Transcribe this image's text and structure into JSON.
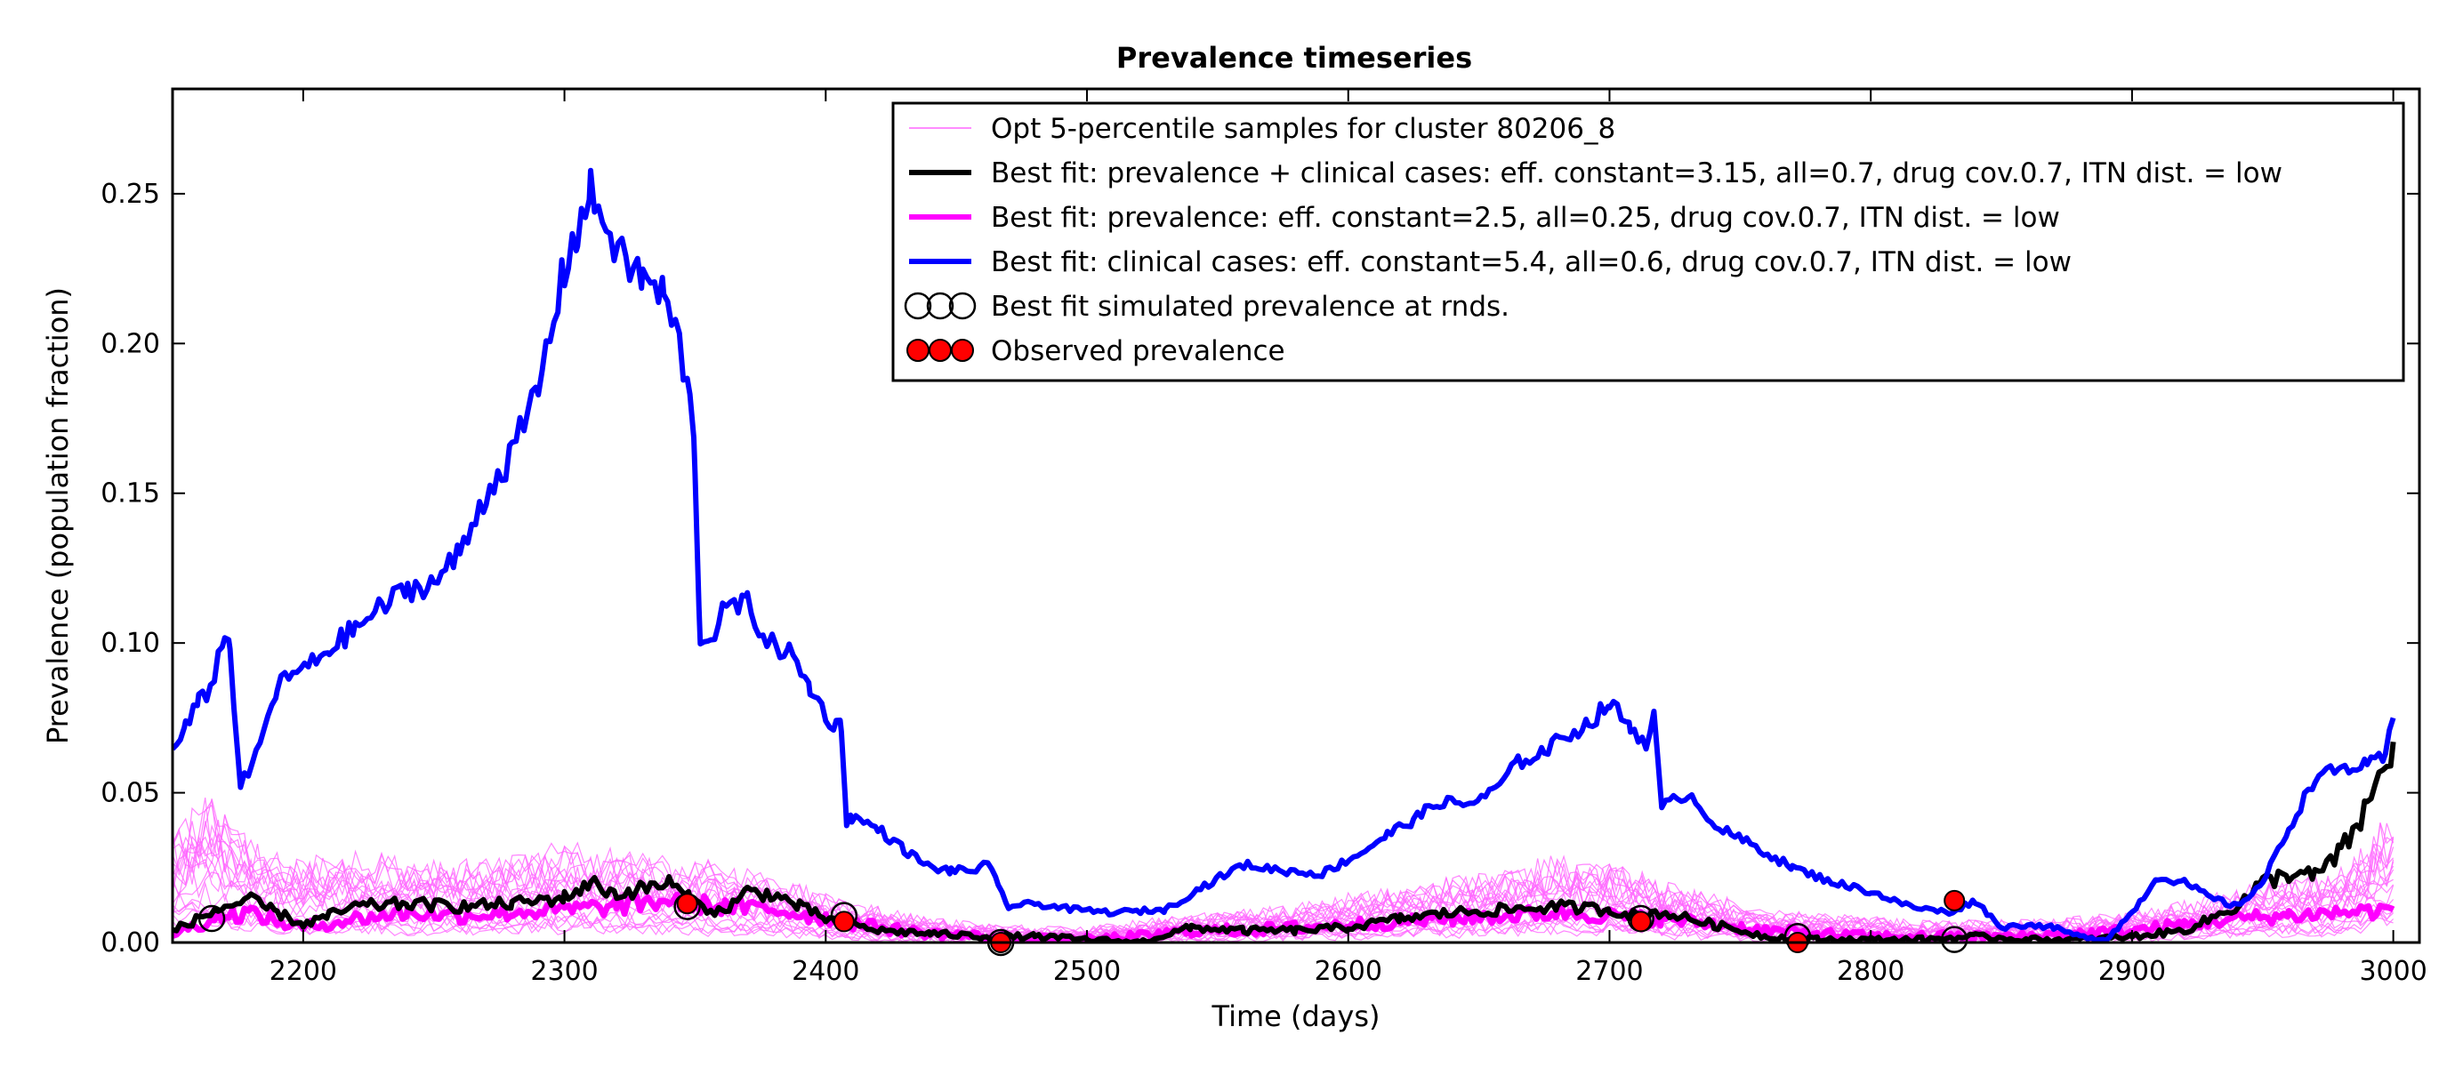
{
  "chart_data": {
    "type": "line",
    "title": "Prevalence timeseries",
    "xlabel": "Time (days)",
    "ylabel": "Prevalence (population fraction)",
    "xlim": [
      2150,
      3010
    ],
    "ylim": [
      0.0,
      0.285
    ],
    "x_ticks": [
      2200,
      2300,
      2400,
      2500,
      2600,
      2700,
      2800,
      2900,
      3000
    ],
    "y_ticks": [
      0.0,
      0.05,
      0.1,
      0.15,
      0.2,
      0.25
    ],
    "x_tick_labels": [
      "2200",
      "2300",
      "2400",
      "2500",
      "2600",
      "2700",
      "2800",
      "2900",
      "3000"
    ],
    "y_tick_labels": [
      "0.00",
      "0.05",
      "0.10",
      "0.15",
      "0.20",
      "0.25"
    ],
    "grid": false,
    "legend_position": "top-right",
    "colors": {
      "samples": "#ff66ff",
      "best_both": "#000000",
      "best_prevalence": "#ff00ff",
      "best_clinical": "#0000ff",
      "observed_fill": "#ff0000"
    },
    "legend": [
      {
        "key": "samples",
        "label": "Opt 5-percentile samples for cluster 80206_8"
      },
      {
        "key": "best_both",
        "label": "Best fit: prevalence + clinical cases: eff. constant=3.15, all=0.7, drug cov.0.7, ITN dist. = low"
      },
      {
        "key": "best_prevalence",
        "label": "Best fit: prevalence: eff. constant=2.5, all=0.25, drug cov.0.7, ITN dist. = low"
      },
      {
        "key": "best_clinical",
        "label": "Best fit: clinical cases: eff. constant=5.4, all=0.6, drug cov.0.7, ITN dist. = low"
      },
      {
        "key": "sim_rounds",
        "label": "Best fit simulated prevalence at rnds."
      },
      {
        "key": "observed",
        "label": "Observed prevalence"
      }
    ],
    "series": [
      {
        "key": "best_clinical",
        "x": [
          2150,
          2155,
          2160,
          2163,
          2166,
          2170,
          2172,
          2176,
          2182,
          2190,
          2196,
          2202,
          2210,
          2220,
          2230,
          2240,
          2250,
          2260,
          2270,
          2280,
          2290,
          2300,
          2305,
          2310,
          2316,
          2322,
          2330,
          2338,
          2344,
          2348,
          2350,
          2352,
          2356,
          2362,
          2370,
          2378,
          2386,
          2394,
          2400,
          2404,
          2406,
          2408,
          2410,
          2420,
          2430,
          2440,
          2448,
          2456,
          2462,
          2466,
          2470,
          2480,
          2495,
          2510,
          2530,
          2545,
          2560,
          2575,
          2590,
          2605,
          2615,
          2625,
          2635,
          2645,
          2655,
          2665,
          2675,
          2685,
          2692,
          2700,
          2708,
          2714,
          2717,
          2720,
          2730,
          2742,
          2756,
          2770,
          2786,
          2800,
          2815,
          2830,
          2840,
          2850,
          2860,
          2870,
          2880,
          2890,
          2900,
          2910,
          2920,
          2930,
          2940,
          2950,
          2960,
          2970,
          2980,
          2990,
          2997,
          3000
        ],
        "y": [
          0.063,
          0.072,
          0.08,
          0.083,
          0.09,
          0.103,
          0.098,
          0.052,
          0.062,
          0.085,
          0.09,
          0.092,
          0.098,
          0.105,
          0.112,
          0.118,
          0.12,
          0.13,
          0.15,
          0.163,
          0.185,
          0.225,
          0.238,
          0.25,
          0.24,
          0.228,
          0.222,
          0.216,
          0.2,
          0.18,
          0.16,
          0.1,
          0.102,
          0.112,
          0.113,
          0.1,
          0.097,
          0.085,
          0.076,
          0.072,
          0.073,
          0.04,
          0.042,
          0.038,
          0.031,
          0.025,
          0.024,
          0.024,
          0.026,
          0.019,
          0.012,
          0.013,
          0.011,
          0.01,
          0.011,
          0.019,
          0.026,
          0.024,
          0.023,
          0.03,
          0.036,
          0.041,
          0.047,
          0.046,
          0.05,
          0.06,
          0.064,
          0.07,
          0.073,
          0.08,
          0.072,
          0.067,
          0.075,
          0.045,
          0.05,
          0.038,
          0.032,
          0.025,
          0.02,
          0.017,
          0.012,
          0.01,
          0.014,
          0.005,
          0.006,
          0.005,
          0.002,
          0.001,
          0.01,
          0.022,
          0.02,
          0.015,
          0.012,
          0.02,
          0.038,
          0.055,
          0.058,
          0.059,
          0.062,
          0.075
        ]
      },
      {
        "key": "best_both",
        "x": [
          2150,
          2160,
          2170,
          2180,
          2190,
          2200,
          2210,
          2220,
          2240,
          2260,
          2280,
          2300,
          2310,
          2320,
          2330,
          2340,
          2350,
          2360,
          2370,
          2380,
          2390,
          2400,
          2410,
          2420,
          2440,
          2460,
          2480,
          2500,
          2520,
          2540,
          2560,
          2580,
          2600,
          2620,
          2640,
          2660,
          2680,
          2700,
          2710,
          2720,
          2740,
          2760,
          2780,
          2800,
          2820,
          2840,
          2860,
          2880,
          2900,
          2920,
          2940,
          2950,
          2960,
          2970,
          2980,
          2990,
          3000
        ],
        "y": [
          0.004,
          0.008,
          0.012,
          0.014,
          0.01,
          0.006,
          0.009,
          0.012,
          0.013,
          0.012,
          0.013,
          0.015,
          0.02,
          0.016,
          0.018,
          0.02,
          0.013,
          0.01,
          0.017,
          0.016,
          0.012,
          0.008,
          0.006,
          0.004,
          0.003,
          0.002,
          0.002,
          0.001,
          0.0,
          0.005,
          0.004,
          0.004,
          0.005,
          0.008,
          0.01,
          0.011,
          0.012,
          0.011,
          0.009,
          0.01,
          0.006,
          0.002,
          0.001,
          0.001,
          0.001,
          0.002,
          0.001,
          0.001,
          0.002,
          0.004,
          0.012,
          0.02,
          0.023,
          0.022,
          0.03,
          0.045,
          0.067
        ]
      },
      {
        "key": "best_prevalence",
        "x": [
          2150,
          2160,
          2170,
          2180,
          2190,
          2200,
          2220,
          2240,
          2260,
          2280,
          2300,
          2320,
          2340,
          2360,
          2380,
          2400,
          2420,
          2440,
          2460,
          2480,
          2500,
          2520,
          2540,
          2560,
          2580,
          2600,
          2620,
          2640,
          2660,
          2680,
          2700,
          2720,
          2740,
          2760,
          2780,
          2800,
          2820,
          2840,
          2860,
          2880,
          2900,
          2920,
          2940,
          2960,
          2980,
          3000
        ],
        "y": [
          0.003,
          0.006,
          0.009,
          0.01,
          0.007,
          0.005,
          0.008,
          0.01,
          0.009,
          0.01,
          0.011,
          0.012,
          0.014,
          0.012,
          0.011,
          0.008,
          0.005,
          0.003,
          0.002,
          0.001,
          0.001,
          0.002,
          0.004,
          0.004,
          0.005,
          0.006,
          0.007,
          0.008,
          0.009,
          0.01,
          0.009,
          0.008,
          0.006,
          0.004,
          0.003,
          0.002,
          0.002,
          0.002,
          0.002,
          0.003,
          0.004,
          0.006,
          0.008,
          0.009,
          0.01,
          0.011
        ]
      }
    ],
    "sample_band": {
      "x": [
        2150,
        2165,
        2180,
        2200,
        2220,
        2240,
        2260,
        2280,
        2300,
        2320,
        2340,
        2360,
        2380,
        2400,
        2420,
        2440,
        2460,
        2480,
        2500,
        2520,
        2540,
        2560,
        2580,
        2600,
        2620,
        2640,
        2660,
        2680,
        2700,
        2720,
        2740,
        2760,
        2780,
        2800,
        2820,
        2840,
        2860,
        2880,
        2900,
        2920,
        2940,
        2960,
        2980,
        3000
      ],
      "upper": [
        0.035,
        0.045,
        0.03,
        0.025,
        0.027,
        0.025,
        0.024,
        0.026,
        0.03,
        0.028,
        0.025,
        0.024,
        0.02,
        0.014,
        0.01,
        0.007,
        0.005,
        0.004,
        0.004,
        0.006,
        0.008,
        0.009,
        0.011,
        0.014,
        0.017,
        0.02,
        0.022,
        0.026,
        0.025,
        0.018,
        0.014,
        0.009,
        0.008,
        0.007,
        0.006,
        0.006,
        0.006,
        0.007,
        0.009,
        0.012,
        0.016,
        0.019,
        0.022,
        0.04
      ],
      "count": 20
    },
    "simulated_at_rounds": {
      "x": [
        2165,
        2347,
        2407,
        2467,
        2712,
        2772,
        2832
      ],
      "y": [
        0.008,
        0.012,
        0.009,
        0.0,
        0.008,
        0.002,
        0.001
      ]
    },
    "observed": {
      "x": [
        2347,
        2407,
        2467,
        2712,
        2772,
        2832
      ],
      "y": [
        0.013,
        0.007,
        0.0,
        0.007,
        0.0,
        0.014
      ]
    }
  }
}
